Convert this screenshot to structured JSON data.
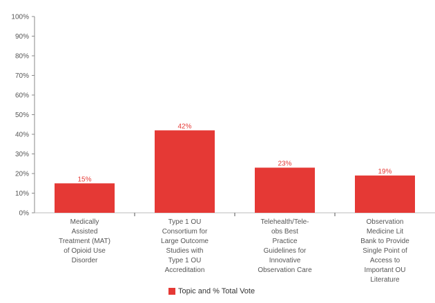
{
  "chart_data": {
    "type": "bar",
    "categories": [
      "Medically Assisted Treatment (MAT) of Opioid Use Disorder",
      "Type 1 OU Consortium for Large Outcome Studies with Type 1 OU Accreditation",
      "Telehealth/Tele-obs Best Practice Guidelines for Innovative Observation Care",
      "Observation Medicine Lit Bank to Provide Single Point of Access to Important OU Literature"
    ],
    "category_lines": [
      [
        "Medically",
        "Assisted",
        "Treatment (MAT)",
        "of Opioid Use",
        "Disorder"
      ],
      [
        "Type 1 OU",
        "Consortium for",
        "Large Outcome",
        "Studies with",
        "Type 1 OU",
        "Accreditation"
      ],
      [
        "Telehealth/Tele-",
        "obs Best",
        "Practice",
        "Guidelines for",
        "Innovative",
        "Observation Care"
      ],
      [
        "Observation",
        "Medicine Lit",
        "Bank to Provide",
        "Single Point of",
        "Access to",
        "Important OU",
        "Literature"
      ]
    ],
    "series": [
      {
        "name": "Topic and % Total Vote",
        "values": [
          15,
          42,
          23,
          19
        ],
        "color": "#e53935"
      }
    ],
    "data_labels": [
      "15%",
      "42%",
      "23%",
      "19%"
    ],
    "ylim": [
      0,
      100
    ],
    "yticks": [
      "0%",
      "10%",
      "20%",
      "30%",
      "40%",
      "50%",
      "60%",
      "70%",
      "80%",
      "90%",
      "100%"
    ],
    "title": "",
    "xlabel": "",
    "ylabel": "",
    "legend": {
      "label": "Topic and % Total Vote",
      "position": "bottom-center"
    }
  }
}
